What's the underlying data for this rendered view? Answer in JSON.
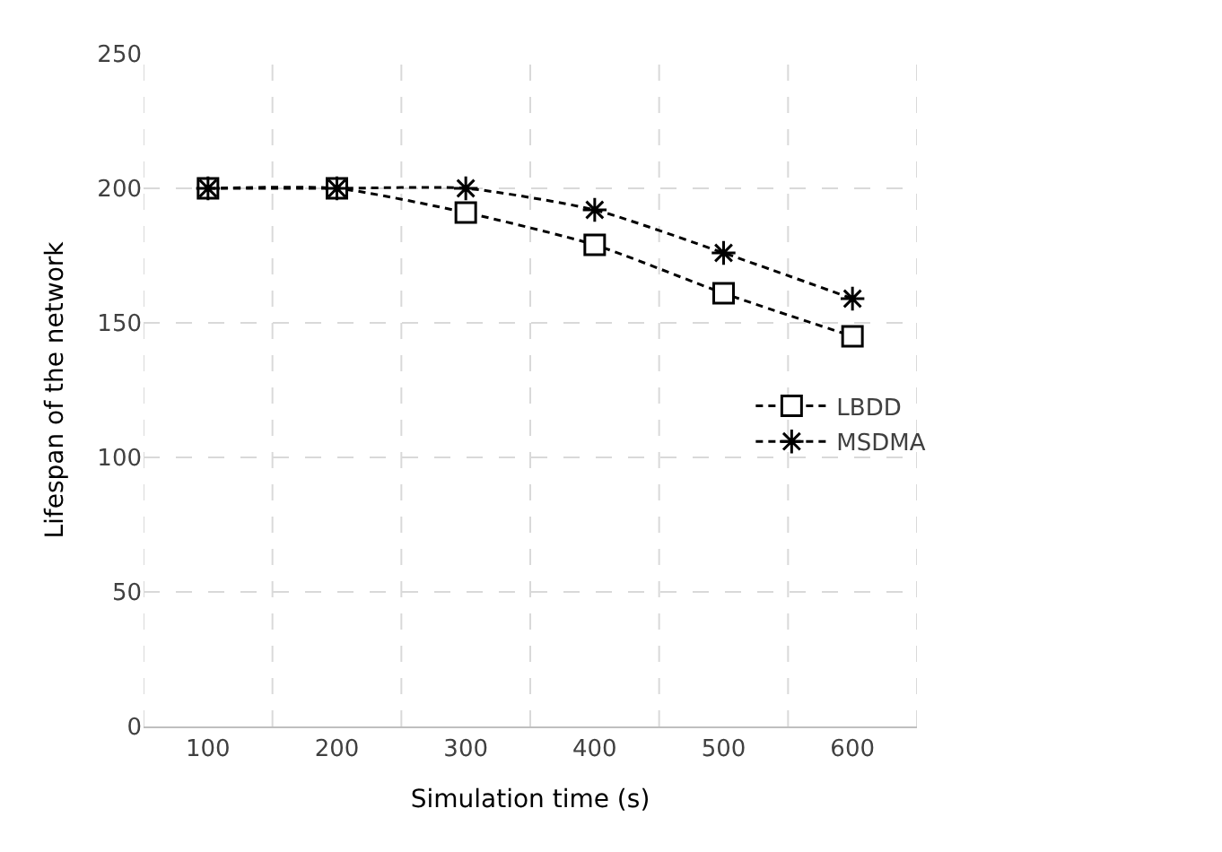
{
  "chart_data": {
    "type": "line",
    "xlabel": "Simulation time (s)",
    "ylabel": "Lifespan of the network",
    "categories": [
      "100",
      "200",
      "300",
      "400",
      "500",
      "600"
    ],
    "series": [
      {
        "name": "LBDD",
        "color": "#000000",
        "marker": "square",
        "values": [
          200,
          200,
          191,
          179,
          161,
          145
        ]
      },
      {
        "name": "MSDMA",
        "color": "#000000",
        "marker": "cross",
        "values": [
          200,
          200,
          200,
          192,
          176,
          159
        ]
      }
    ],
    "ylim": [
      0,
      250
    ],
    "yticks": [
      0,
      50,
      100,
      150,
      200,
      250
    ],
    "grid": true,
    "legend": "right",
    "line_style": "dashed"
  }
}
